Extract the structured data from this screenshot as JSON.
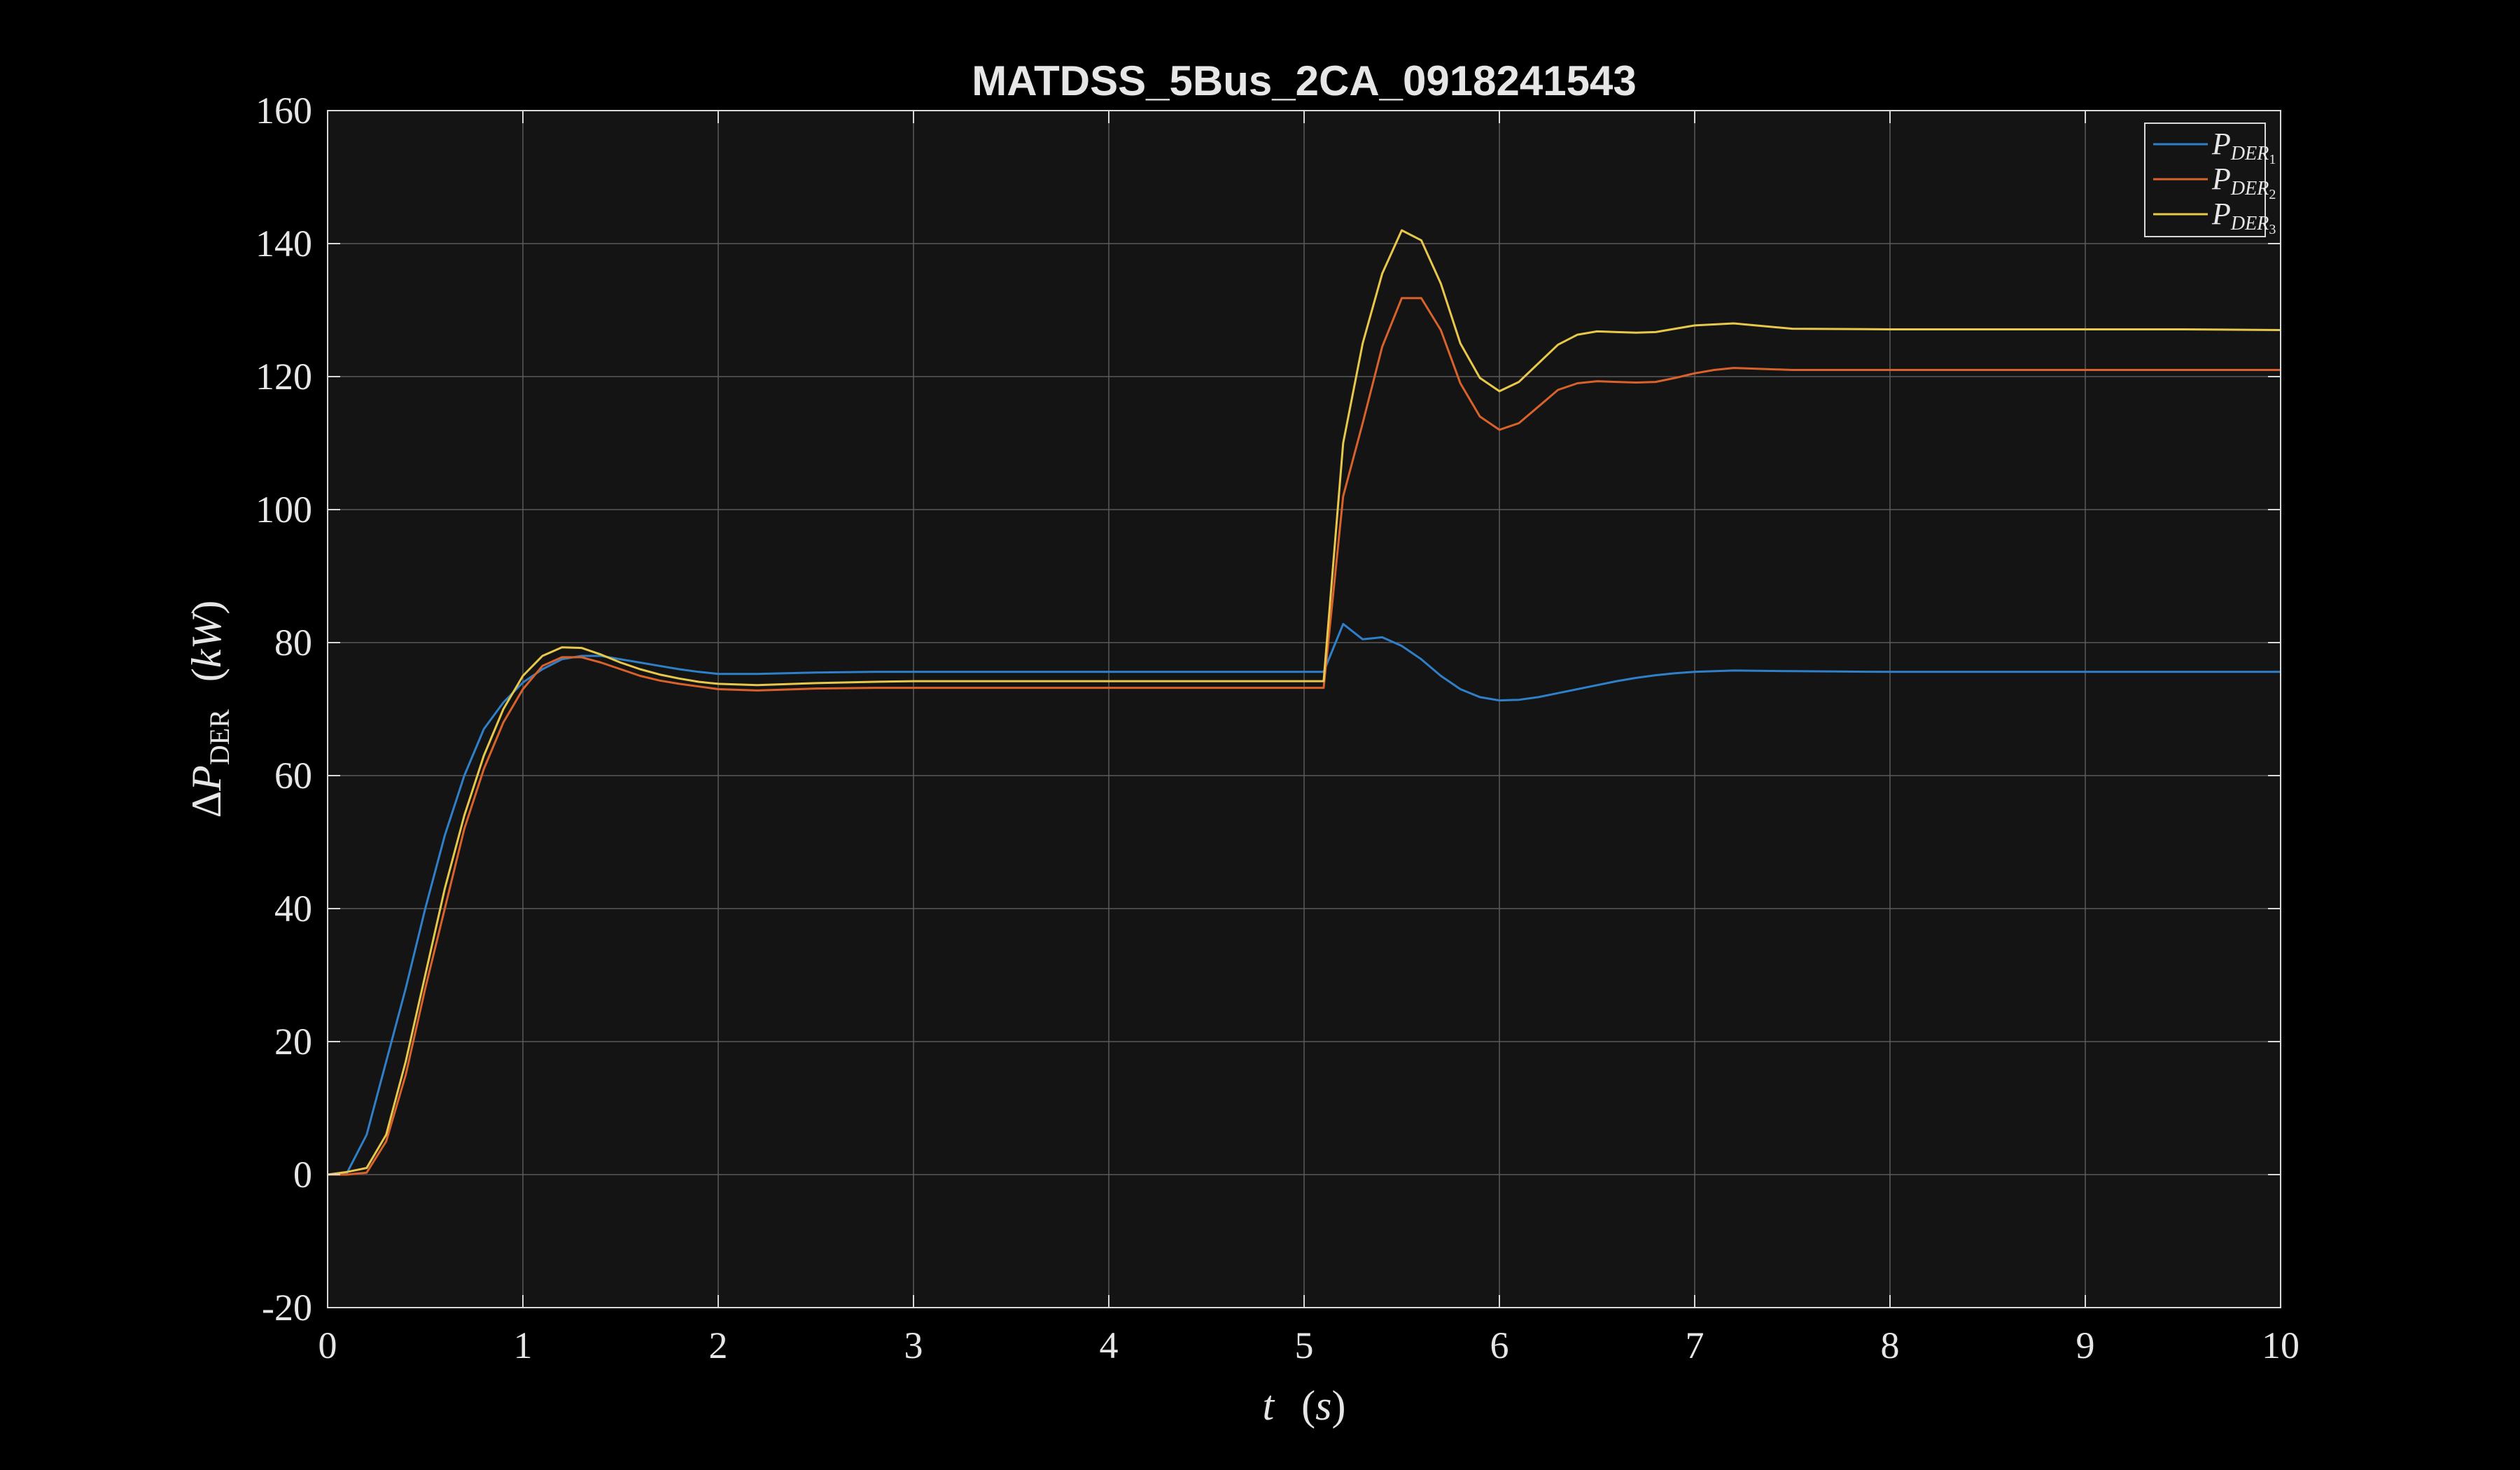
{
  "chart_data": {
    "type": "line",
    "title": "MATDSS_5Bus_2CA_0918241543",
    "xlabel": {
      "var": "t",
      "unit": "s"
    },
    "ylabel": {
      "prefix": "Δ",
      "var": "P",
      "sub": "DER",
      "unit": "kW"
    },
    "xlim": [
      0,
      10
    ],
    "ylim": [
      -20,
      160
    ],
    "xticks": [
      0,
      1,
      2,
      3,
      4,
      5,
      6,
      7,
      8,
      9,
      10
    ],
    "yticks": [
      -20,
      0,
      20,
      40,
      60,
      80,
      100,
      120,
      140,
      160
    ],
    "grid": true,
    "legend_position": "top-right",
    "colors": {
      "figure_bg": "#000000",
      "axes_bg": "#141414",
      "axes_edge": "#d9d9d9",
      "grid": "#5a5a5a",
      "text": "#e6e6e6"
    },
    "series": [
      {
        "name": "P_DER1",
        "legend": {
          "var": "P",
          "sub": "DER",
          "subsub": "1"
        },
        "color": "#2f7fc9",
        "x": [
          0,
          0.1,
          0.2,
          0.3,
          0.4,
          0.5,
          0.6,
          0.7,
          0.8,
          0.9,
          1.0,
          1.1,
          1.2,
          1.3,
          1.4,
          1.5,
          1.6,
          1.7,
          1.8,
          1.9,
          2.0,
          2.2,
          2.5,
          2.8,
          3.0,
          3.5,
          4.0,
          4.5,
          5.0,
          5.1,
          5.2,
          5.3,
          5.4,
          5.5,
          5.6,
          5.7,
          5.8,
          5.9,
          6.0,
          6.1,
          6.2,
          6.3,
          6.4,
          6.5,
          6.6,
          6.7,
          6.8,
          6.9,
          7.0,
          7.2,
          7.5,
          8.0,
          8.5,
          9.0,
          9.5,
          10.0
        ],
        "y": [
          0,
          0.3,
          6,
          17,
          28,
          40,
          51,
          60,
          67,
          71,
          74,
          76,
          77.5,
          78,
          78,
          77.5,
          77,
          76.5,
          76,
          75.6,
          75.3,
          75.3,
          75.5,
          75.6,
          75.6,
          75.6,
          75.6,
          75.6,
          75.6,
          75.6,
          82.8,
          80.5,
          80.8,
          79.5,
          77.5,
          75,
          73,
          71.8,
          71.3,
          71.4,
          71.8,
          72.4,
          73,
          73.6,
          74.2,
          74.7,
          75.1,
          75.4,
          75.6,
          75.8,
          75.7,
          75.6,
          75.6,
          75.6,
          75.6,
          75.6
        ]
      },
      {
        "name": "P_DER2",
        "legend": {
          "var": "P",
          "sub": "DER",
          "subsub": "2"
        },
        "color": "#d9622b",
        "x": [
          0,
          0.1,
          0.2,
          0.3,
          0.4,
          0.5,
          0.6,
          0.7,
          0.8,
          0.9,
          1.0,
          1.1,
          1.2,
          1.3,
          1.4,
          1.5,
          1.6,
          1.7,
          1.8,
          1.9,
          2.0,
          2.2,
          2.5,
          2.8,
          3.0,
          3.5,
          4.0,
          4.5,
          5.0,
          5.1,
          5.2,
          5.3,
          5.4,
          5.5,
          5.6,
          5.7,
          5.8,
          5.9,
          6.0,
          6.1,
          6.2,
          6.3,
          6.4,
          6.5,
          6.6,
          6.7,
          6.8,
          6.9,
          7.0,
          7.1,
          7.2,
          7.5,
          8.0,
          8.5,
          9.0,
          9.5,
          10.0
        ],
        "y": [
          0,
          0,
          0.3,
          5,
          15,
          28,
          40,
          52,
          61,
          68,
          73,
          76.5,
          77.8,
          77.8,
          77,
          76,
          75,
          74.3,
          73.8,
          73.4,
          73,
          72.8,
          73.1,
          73.2,
          73.2,
          73.2,
          73.2,
          73.2,
          73.2,
          73.2,
          102,
          113,
          124.5,
          131.8,
          131.8,
          127,
          119,
          114,
          112,
          113,
          115.5,
          118,
          119,
          119.3,
          119.2,
          119.1,
          119.2,
          119.8,
          120.5,
          121,
          121.3,
          121,
          121,
          121,
          121,
          121,
          121
        ]
      },
      {
        "name": "P_DER3",
        "legend": {
          "var": "P",
          "sub": "DER",
          "subsub": "3"
        },
        "color": "#e8c84a",
        "x": [
          0,
          0.1,
          0.2,
          0.3,
          0.4,
          0.5,
          0.6,
          0.7,
          0.8,
          0.9,
          1.0,
          1.1,
          1.2,
          1.3,
          1.4,
          1.5,
          1.6,
          1.7,
          1.8,
          1.9,
          2.0,
          2.2,
          2.5,
          2.8,
          3.0,
          3.5,
          4.0,
          4.5,
          5.0,
          5.1,
          5.2,
          5.3,
          5.4,
          5.5,
          5.6,
          5.7,
          5.8,
          5.9,
          6.0,
          6.1,
          6.2,
          6.3,
          6.4,
          6.5,
          6.6,
          6.7,
          6.8,
          6.9,
          7.0,
          7.2,
          7.5,
          8.0,
          8.5,
          9.0,
          9.5,
          10.0
        ],
        "y": [
          0,
          0.4,
          1,
          6,
          17,
          30,
          43,
          54,
          63,
          70,
          75,
          78,
          79.3,
          79.2,
          78.2,
          77,
          76,
          75.2,
          74.6,
          74.1,
          73.8,
          73.6,
          73.9,
          74.1,
          74.2,
          74.2,
          74.2,
          74.2,
          74.2,
          74.2,
          110,
          125,
          135.5,
          142,
          140.5,
          134,
          125,
          119.8,
          117.8,
          119.2,
          122,
          124.8,
          126.3,
          126.8,
          126.7,
          126.6,
          126.7,
          127.2,
          127.7,
          128,
          127.2,
          127.1,
          127.1,
          127.1,
          127.1,
          127
        ]
      }
    ]
  }
}
